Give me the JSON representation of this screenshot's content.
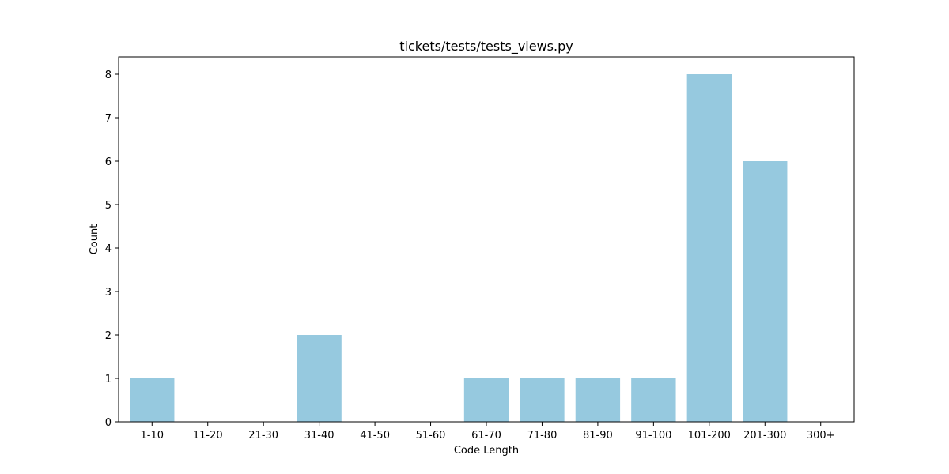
{
  "chart_data": {
    "type": "bar",
    "title": "tickets/tests/tests_views.py",
    "xlabel": "Code Length",
    "ylabel": "Count",
    "categories": [
      "1-10",
      "11-20",
      "21-30",
      "31-40",
      "41-50",
      "51-60",
      "61-70",
      "71-80",
      "81-90",
      "91-100",
      "101-200",
      "201-300",
      "300+"
    ],
    "values": [
      1,
      0,
      0,
      2,
      0,
      0,
      1,
      1,
      1,
      1,
      8,
      6,
      0
    ],
    "ylim": [
      0,
      8.4
    ],
    "yticks": [
      "0",
      "1",
      "2",
      "3",
      "4",
      "5",
      "6",
      "7",
      "8"
    ],
    "bar_color": "#96c9df",
    "grid": false,
    "legend": "none"
  }
}
